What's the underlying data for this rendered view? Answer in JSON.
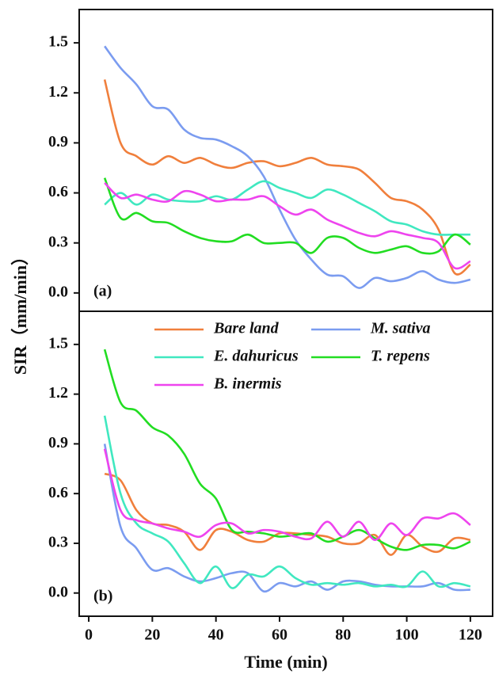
{
  "ylabel": "SIR（mm/min）",
  "chart_data": [
    {
      "type": "line",
      "label": "(a)",
      "x": [
        5,
        10,
        15,
        20,
        25,
        30,
        35,
        40,
        45,
        50,
        55,
        60,
        65,
        70,
        75,
        80,
        85,
        90,
        95,
        100,
        105,
        110,
        115,
        120
      ],
      "xlim": [
        -3,
        127
      ],
      "ylim": [
        -0.11,
        1.7
      ],
      "yticks": [
        {
          "value": 0,
          "label": "0.0"
        },
        0.3,
        0.6,
        0.9,
        1.2,
        1.5
      ],
      "legend": false,
      "series": [
        {
          "name": "Bare land",
          "color": "#f07f3c",
          "values": [
            1.28,
            0.9,
            0.82,
            0.77,
            0.82,
            0.78,
            0.81,
            0.77,
            0.75,
            0.78,
            0.79,
            0.76,
            0.78,
            0.81,
            0.77,
            0.76,
            0.74,
            0.66,
            0.57,
            0.55,
            0.5,
            0.38,
            0.12,
            0.17
          ]
        },
        {
          "name": "M. sativa",
          "color": "#7b9cf0",
          "values": [
            1.48,
            1.35,
            1.25,
            1.12,
            1.1,
            0.98,
            0.93,
            0.92,
            0.88,
            0.82,
            0.7,
            0.5,
            0.32,
            0.2,
            0.11,
            0.1,
            0.03,
            0.09,
            0.07,
            0.09,
            0.13,
            0.08,
            0.06,
            0.08
          ]
        },
        {
          "name": "E. dahuricus",
          "color": "#40e8c0",
          "values": [
            0.53,
            0.6,
            0.53,
            0.59,
            0.56,
            0.55,
            0.55,
            0.58,
            0.56,
            0.62,
            0.67,
            0.63,
            0.6,
            0.57,
            0.62,
            0.59,
            0.54,
            0.49,
            0.43,
            0.41,
            0.37,
            0.35,
            0.35,
            0.35
          ]
        },
        {
          "name": "T. repens",
          "color": "#22dd22",
          "values": [
            0.69,
            0.45,
            0.48,
            0.43,
            0.42,
            0.37,
            0.33,
            0.31,
            0.31,
            0.35,
            0.3,
            0.3,
            0.3,
            0.24,
            0.33,
            0.33,
            0.27,
            0.24,
            0.26,
            0.28,
            0.24,
            0.25,
            0.35,
            0.29
          ]
        },
        {
          "name": "B. inermis",
          "color": "#ee44ee",
          "values": [
            0.66,
            0.57,
            0.59,
            0.56,
            0.55,
            0.61,
            0.59,
            0.55,
            0.56,
            0.56,
            0.58,
            0.52,
            0.47,
            0.5,
            0.44,
            0.4,
            0.36,
            0.34,
            0.37,
            0.35,
            0.33,
            0.3,
            0.15,
            0.19
          ]
        }
      ]
    },
    {
      "type": "line",
      "label": "(b)",
      "xlabel": "Time (min)",
      "x": [
        5,
        10,
        15,
        20,
        25,
        30,
        35,
        40,
        45,
        50,
        55,
        60,
        65,
        70,
        75,
        80,
        85,
        90,
        95,
        100,
        105,
        110,
        115,
        120
      ],
      "xlim": [
        -3,
        127
      ],
      "ylim": [
        -0.14,
        1.7
      ],
      "xticks": [
        0,
        20,
        40,
        60,
        80,
        100,
        120
      ],
      "yticks": [
        {
          "value": 0,
          "label": "0.0"
        },
        0.3,
        0.6,
        0.9,
        1.2,
        1.5
      ],
      "legend": true,
      "series": [
        {
          "name": "Bare land",
          "color": "#f07f3c",
          "values": [
            0.72,
            0.68,
            0.5,
            0.42,
            0.41,
            0.37,
            0.26,
            0.38,
            0.37,
            0.32,
            0.31,
            0.36,
            0.36,
            0.35,
            0.34,
            0.3,
            0.3,
            0.35,
            0.23,
            0.35,
            0.28,
            0.25,
            0.33,
            0.32
          ]
        },
        {
          "name": "M. sativa",
          "color": "#7b9cf0",
          "values": [
            0.9,
            0.4,
            0.27,
            0.14,
            0.15,
            0.1,
            0.07,
            0.09,
            0.12,
            0.12,
            0.01,
            0.06,
            0.04,
            0.07,
            0.02,
            0.07,
            0.07,
            0.05,
            0.04,
            0.04,
            0.04,
            0.06,
            0.02,
            0.02
          ]
        },
        {
          "name": "E. dahuricus",
          "color": "#40e8c0",
          "values": [
            1.07,
            0.6,
            0.42,
            0.36,
            0.31,
            0.18,
            0.06,
            0.16,
            0.03,
            0.11,
            0.1,
            0.16,
            0.09,
            0.05,
            0.06,
            0.05,
            0.06,
            0.04,
            0.05,
            0.04,
            0.13,
            0.04,
            0.06,
            0.04
          ]
        },
        {
          "name": "T. repens",
          "color": "#22dd22",
          "values": [
            1.47,
            1.15,
            1.1,
            1.0,
            0.95,
            0.84,
            0.66,
            0.57,
            0.38,
            0.37,
            0.36,
            0.34,
            0.35,
            0.36,
            0.31,
            0.34,
            0.38,
            0.33,
            0.28,
            0.26,
            0.29,
            0.29,
            0.27,
            0.31
          ]
        },
        {
          "name": "B. inermis",
          "color": "#ee44ee",
          "values": [
            0.87,
            0.5,
            0.44,
            0.42,
            0.39,
            0.37,
            0.34,
            0.41,
            0.42,
            0.36,
            0.38,
            0.37,
            0.34,
            0.33,
            0.43,
            0.34,
            0.43,
            0.32,
            0.42,
            0.35,
            0.45,
            0.45,
            0.48,
            0.41
          ]
        }
      ]
    }
  ]
}
